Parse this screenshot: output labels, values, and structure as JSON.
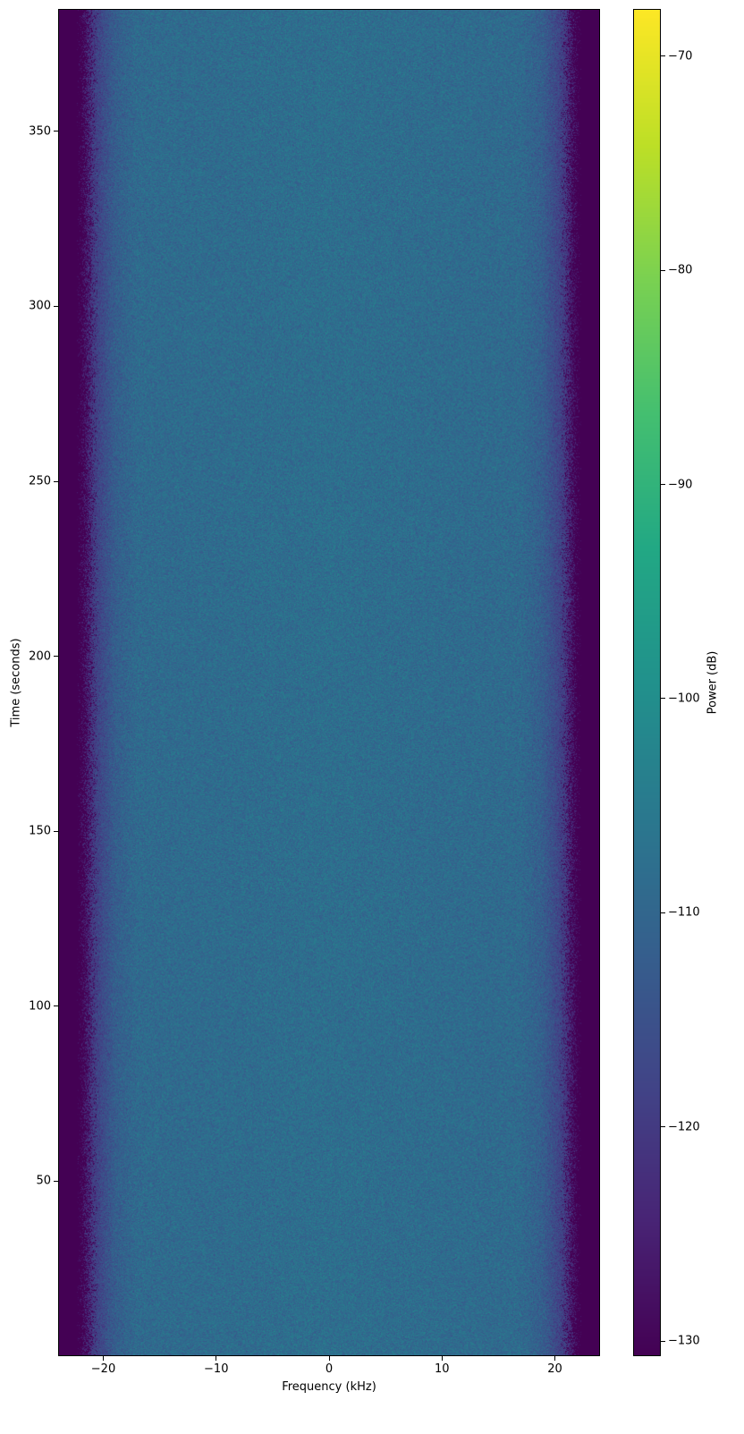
{
  "chart_data": {
    "type": "heatmap",
    "title": "",
    "xlabel": "Frequency (kHz)",
    "ylabel": "Time (seconds)",
    "xlim": [
      -24,
      24
    ],
    "ylim": [
      0,
      385
    ],
    "xticks": [
      -20,
      -10,
      0,
      10,
      20
    ],
    "xtick_labels": [
      "−20",
      "−10",
      "0",
      "10",
      "20"
    ],
    "yticks": [
      50,
      100,
      150,
      200,
      250,
      300,
      350
    ],
    "ytick_labels": [
      "50",
      "100",
      "150",
      "200",
      "250",
      "300",
      "350"
    ],
    "colormap": "viridis",
    "colorbar": {
      "label": "Power (dB)",
      "range": [
        -130.7,
        -67.8
      ],
      "ticks": [
        -70,
        -80,
        -90,
        -100,
        -110,
        -120,
        -130
      ],
      "tick_labels": [
        "−70",
        "−80",
        "−90",
        "−100",
        "−110",
        "−120",
        "−130"
      ]
    },
    "frequency_profile_db": {
      "frequency_khz": [
        -24,
        -22.5,
        -21,
        -19,
        -17,
        0,
        17,
        19,
        21,
        22.5,
        24
      ],
      "mean_power_db": [
        -130.7,
        -130.7,
        -120,
        -112,
        -109,
        -108,
        -109,
        -112,
        -120,
        -130.7,
        -130.7
      ]
    },
    "grid": false
  }
}
